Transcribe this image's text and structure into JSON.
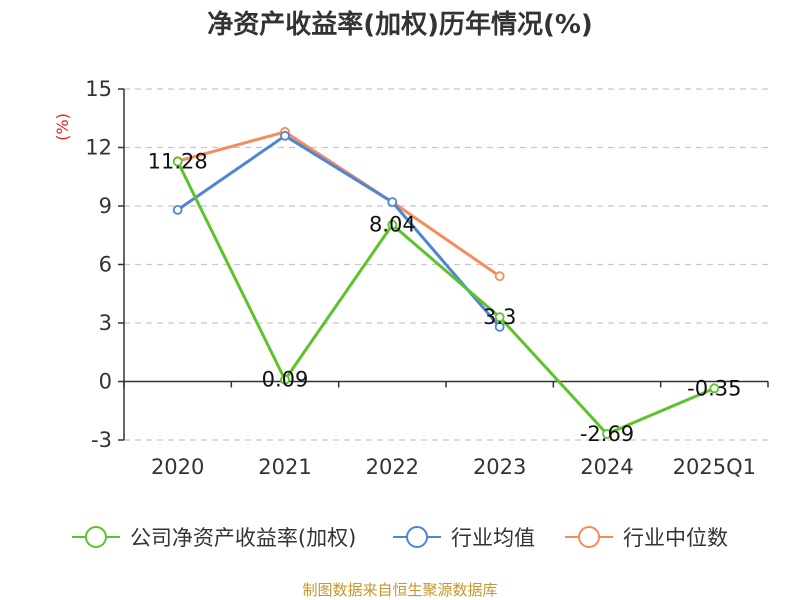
{
  "chart_data": {
    "type": "line",
    "title": "净资产收益率(加权)历年情况(%)",
    "ylabel": "(%)",
    "categories": [
      "2020",
      "2021",
      "2022",
      "2023",
      "2024",
      "2025Q1"
    ],
    "yticks": [
      "15",
      "12",
      "9",
      "6",
      "3",
      "0",
      "-3"
    ],
    "ylim": [
      -3,
      15
    ],
    "grid": true,
    "legend_position": "bottom",
    "series": [
      {
        "name": "公司净资产收益率(加权)",
        "color": "#5bc42a",
        "values": [
          11.28,
          0.09,
          8.04,
          3.3,
          -2.69,
          -0.35
        ],
        "labels": [
          "11.28",
          "0.09",
          "8.04",
          "3.3",
          "-2.69",
          "-0.35"
        ]
      },
      {
        "name": "行业均值",
        "color": "#4f84d6",
        "values": [
          8.8,
          12.6,
          9.2,
          2.8,
          null,
          null
        ]
      },
      {
        "name": "行业中位数",
        "color": "#f58c5a",
        "values": [
          11.3,
          12.8,
          9.2,
          5.4,
          null,
          null
        ]
      }
    ],
    "source": "制图数据来自恒生聚源数据库"
  }
}
